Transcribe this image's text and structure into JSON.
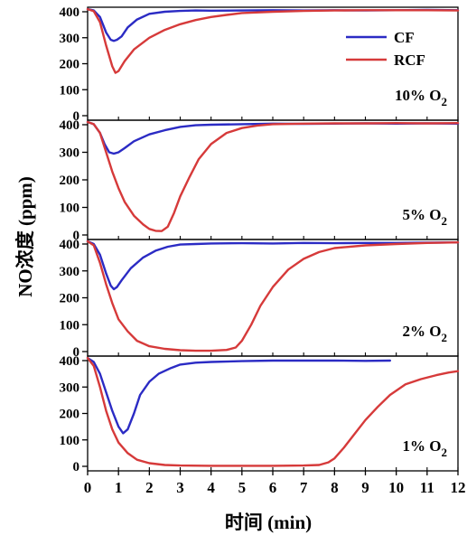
{
  "chart_data": {
    "type": "line",
    "xlabel": "时间 (min)",
    "ylabel": "NO浓度 (ppm)",
    "xlim": [
      0,
      12
    ],
    "x_ticks": [
      0,
      1,
      2,
      3,
      4,
      5,
      6,
      7,
      8,
      9,
      10,
      11,
      12
    ],
    "ylim": [
      0,
      400
    ],
    "y_ticks": [
      0,
      100,
      200,
      300,
      400
    ],
    "grid": false,
    "legend": {
      "placement": "top-right of first panel",
      "entries": [
        {
          "name": "CF",
          "color": "#2b2bc4"
        },
        {
          "name": "RCF",
          "color": "#d63a3a"
        }
      ]
    },
    "panels": [
      {
        "label": "10% O",
        "label_sub": "2",
        "series": [
          {
            "name": "CF",
            "color": "#2b2bc4",
            "points": [
              [
                0,
                410
              ],
              [
                0.2,
                405
              ],
              [
                0.4,
                380
              ],
              [
                0.6,
                320
              ],
              [
                0.75,
                292
              ],
              [
                0.85,
                288
              ],
              [
                0.95,
                292
              ],
              [
                1.1,
                305
              ],
              [
                1.3,
                340
              ],
              [
                1.6,
                370
              ],
              [
                2.0,
                392
              ],
              [
                2.5,
                400
              ],
              [
                3.0,
                403
              ],
              [
                3.5,
                405
              ],
              [
                4.0,
                404
              ],
              [
                5.0,
                405
              ],
              [
                6.0,
                406
              ],
              [
                7.0,
                405
              ],
              [
                8.0,
                406
              ],
              [
                9.0,
                405
              ],
              [
                10.0,
                406
              ],
              [
                11.0,
                407
              ],
              [
                12.0,
                406
              ]
            ]
          },
          {
            "name": "RCF",
            "color": "#d63a3a",
            "points": [
              [
                0,
                410
              ],
              [
                0.2,
                402
              ],
              [
                0.4,
                360
              ],
              [
                0.6,
                270
              ],
              [
                0.8,
                190
              ],
              [
                0.9,
                165
              ],
              [
                1.0,
                172
              ],
              [
                1.2,
                210
              ],
              [
                1.5,
                255
              ],
              [
                2.0,
                300
              ],
              [
                2.5,
                330
              ],
              [
                3.0,
                352
              ],
              [
                3.5,
                368
              ],
              [
                4.0,
                380
              ],
              [
                4.5,
                388
              ],
              [
                5.0,
                395
              ],
              [
                6.0,
                400
              ],
              [
                7.0,
                403
              ],
              [
                8.0,
                405
              ],
              [
                9.0,
                406
              ],
              [
                10.0,
                406
              ],
              [
                11.0,
                406
              ],
              [
                12.0,
                405
              ]
            ]
          }
        ]
      },
      {
        "label": "5% O",
        "label_sub": "2",
        "series": [
          {
            "name": "CF",
            "color": "#2b2bc4",
            "points": [
              [
                0,
                410
              ],
              [
                0.2,
                402
              ],
              [
                0.4,
                370
              ],
              [
                0.55,
                330
              ],
              [
                0.7,
                300
              ],
              [
                0.85,
                295
              ],
              [
                1.0,
                300
              ],
              [
                1.2,
                315
              ],
              [
                1.5,
                340
              ],
              [
                2.0,
                365
              ],
              [
                2.5,
                380
              ],
              [
                3.0,
                392
              ],
              [
                3.5,
                398
              ],
              [
                4.0,
                400
              ],
              [
                5.0,
                402
              ],
              [
                6.0,
                404
              ],
              [
                7.0,
                403
              ],
              [
                8.0,
                404
              ],
              [
                9.0,
                405
              ],
              [
                10.0,
                404
              ],
              [
                11.0,
                405
              ],
              [
                12.0,
                404
              ]
            ]
          },
          {
            "name": "RCF",
            "color": "#d63a3a",
            "points": [
              [
                0,
                410
              ],
              [
                0.2,
                402
              ],
              [
                0.4,
                370
              ],
              [
                0.6,
                300
              ],
              [
                0.8,
                230
              ],
              [
                1.0,
                170
              ],
              [
                1.2,
                120
              ],
              [
                1.5,
                70
              ],
              [
                1.8,
                38
              ],
              [
                2.0,
                22
              ],
              [
                2.2,
                15
              ],
              [
                2.4,
                14
              ],
              [
                2.6,
                30
              ],
              [
                2.8,
                80
              ],
              [
                3.0,
                140
              ],
              [
                3.3,
                210
              ],
              [
                3.6,
                275
              ],
              [
                4.0,
                330
              ],
              [
                4.5,
                370
              ],
              [
                5.0,
                388
              ],
              [
                5.5,
                397
              ],
              [
                6.0,
                402
              ],
              [
                7.0,
                404
              ],
              [
                8.0,
                405
              ],
              [
                9.0,
                405
              ],
              [
                10.0,
                406
              ],
              [
                11.0,
                405
              ],
              [
                12.0,
                406
              ]
            ]
          }
        ]
      },
      {
        "label": "2% O",
        "label_sub": "2",
        "series": [
          {
            "name": "CF",
            "color": "#2b2bc4",
            "points": [
              [
                0,
                410
              ],
              [
                0.2,
                400
              ],
              [
                0.4,
                360
              ],
              [
                0.6,
                290
              ],
              [
                0.75,
                245
              ],
              [
                0.85,
                232
              ],
              [
                0.95,
                240
              ],
              [
                1.1,
                265
              ],
              [
                1.4,
                310
              ],
              [
                1.8,
                350
              ],
              [
                2.2,
                375
              ],
              [
                2.6,
                390
              ],
              [
                3.0,
                398
              ],
              [
                3.5,
                400
              ],
              [
                4.0,
                402
              ],
              [
                5.0,
                403
              ],
              [
                6.0,
                402
              ],
              [
                7.0,
                404
              ],
              [
                8.0,
                403
              ],
              [
                9.0,
                404
              ],
              [
                10.0,
                404
              ],
              [
                11.0,
                405
              ],
              [
                12.0,
                406
              ]
            ]
          },
          {
            "name": "RCF",
            "color": "#d63a3a",
            "points": [
              [
                0,
                410
              ],
              [
                0.2,
                395
              ],
              [
                0.4,
                330
              ],
              [
                0.6,
                250
              ],
              [
                0.8,
                180
              ],
              [
                1.0,
                120
              ],
              [
                1.3,
                75
              ],
              [
                1.6,
                40
              ],
              [
                2.0,
                20
              ],
              [
                2.5,
                10
              ],
              [
                3.0,
                5
              ],
              [
                3.5,
                3
              ],
              [
                4.0,
                3
              ],
              [
                4.5,
                6
              ],
              [
                4.8,
                15
              ],
              [
                5.0,
                40
              ],
              [
                5.3,
                100
              ],
              [
                5.6,
                170
              ],
              [
                6.0,
                240
              ],
              [
                6.5,
                305
              ],
              [
                7.0,
                345
              ],
              [
                7.5,
                370
              ],
              [
                8.0,
                385
              ],
              [
                9.0,
                395
              ],
              [
                10.0,
                400
              ],
              [
                11.0,
                404
              ],
              [
                12.0,
                406
              ]
            ]
          }
        ]
      },
      {
        "label": "1% O",
        "label_sub": "2",
        "series": [
          {
            "name": "CF",
            "color": "#2b2bc4",
            "points": [
              [
                0,
                410
              ],
              [
                0.2,
                395
              ],
              [
                0.4,
                350
              ],
              [
                0.6,
                280
              ],
              [
                0.8,
                210
              ],
              [
                1.0,
                150
              ],
              [
                1.15,
                125
              ],
              [
                1.3,
                140
              ],
              [
                1.5,
                200
              ],
              [
                1.7,
                270
              ],
              [
                2.0,
                320
              ],
              [
                2.3,
                350
              ],
              [
                2.7,
                372
              ],
              [
                3.0,
                385
              ],
              [
                3.5,
                392
              ],
              [
                4.0,
                395
              ],
              [
                5.0,
                398
              ],
              [
                6.0,
                400
              ],
              [
                7.0,
                400
              ],
              [
                8.0,
                400
              ],
              [
                9.0,
                399
              ],
              [
                9.8,
                400
              ]
            ]
          },
          {
            "name": "RCF",
            "color": "#d63a3a",
            "points": [
              [
                0,
                410
              ],
              [
                0.2,
                380
              ],
              [
                0.4,
                300
              ],
              [
                0.6,
                210
              ],
              [
                0.8,
                140
              ],
              [
                1.0,
                90
              ],
              [
                1.3,
                50
              ],
              [
                1.6,
                25
              ],
              [
                2.0,
                12
              ],
              [
                2.5,
                5
              ],
              [
                3.0,
                3
              ],
              [
                4.0,
                2
              ],
              [
                5.0,
                2
              ],
              [
                6.0,
                2
              ],
              [
                7.0,
                3
              ],
              [
                7.5,
                5
              ],
              [
                7.8,
                15
              ],
              [
                8.0,
                30
              ],
              [
                8.3,
                70
              ],
              [
                8.6,
                115
              ],
              [
                9.0,
                175
              ],
              [
                9.4,
                225
              ],
              [
                9.8,
                270
              ],
              [
                10.3,
                310
              ],
              [
                10.8,
                330
              ],
              [
                11.3,
                345
              ],
              [
                11.7,
                355
              ],
              [
                12.0,
                360
              ]
            ]
          }
        ]
      }
    ]
  }
}
